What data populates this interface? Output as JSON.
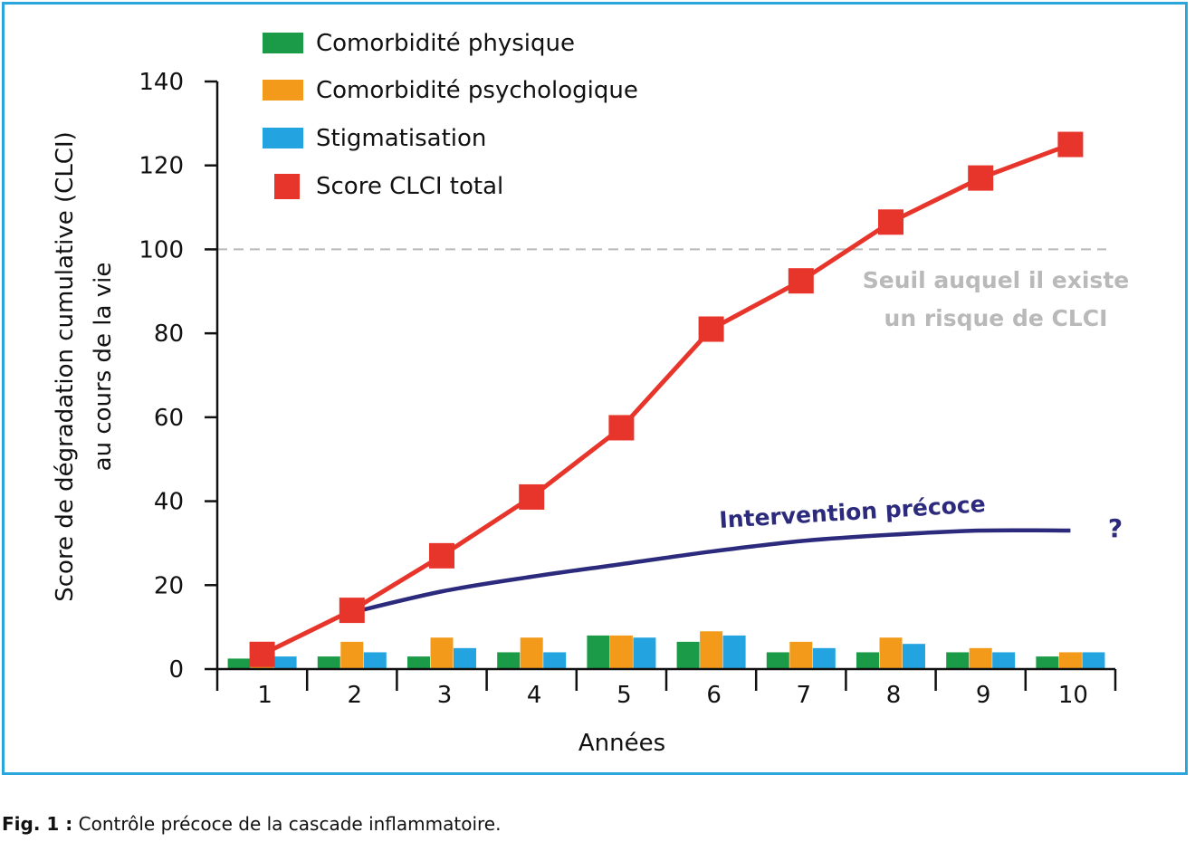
{
  "colors": {
    "frame": "#2aa6dc",
    "physique": "#1b9a47",
    "psychologique": "#f39a1a",
    "stigmatisation": "#23a3e0",
    "total": "#e8352b",
    "intervention": "#2c2a7c",
    "threshold": "#b9b9b9"
  },
  "caption": {
    "label": "Fig. 1 :",
    "text": " Contrôle précoce de la cascade inflammatoire."
  },
  "chart_data": {
    "type": "bar",
    "title": "",
    "xlabel": "Années",
    "ylabel_line1": "Score de dégradation cumulative (CLCI)",
    "ylabel_line2": "au cours de la vie",
    "ylim": [
      0,
      140
    ],
    "yticks": [
      "0",
      "20",
      "40",
      "60",
      "80",
      "100",
      "120",
      "140"
    ],
    "categories": [
      "1",
      "2",
      "3",
      "4",
      "5",
      "6",
      "7",
      "8",
      "9",
      "10"
    ],
    "series": [
      {
        "name": "Comorbidité physique",
        "kind": "bar",
        "color": "#1b9a47",
        "values": [
          2.5,
          3,
          3,
          4,
          8,
          6.5,
          4,
          4,
          4,
          3
        ]
      },
      {
        "name": "Comorbidité psychologique",
        "kind": "bar",
        "color": "#f39a1a",
        "values": [
          3,
          6.5,
          7.5,
          7.5,
          8,
          9,
          6.5,
          7.5,
          5,
          4
        ]
      },
      {
        "name": "Stigmatisation",
        "kind": "bar",
        "color": "#23a3e0",
        "values": [
          3,
          4,
          5,
          4,
          7.5,
          8,
          5,
          6,
          4,
          4
        ]
      },
      {
        "name": "Score CLCI total",
        "kind": "line",
        "color": "#e8352b",
        "values": [
          3.5,
          14,
          27,
          41,
          57.5,
          81,
          92.5,
          106.5,
          117,
          125
        ]
      }
    ],
    "intervention": {
      "label": "Intervention précoce",
      "marker": "?",
      "x": [
        2,
        3,
        4,
        5,
        6,
        7,
        8,
        9,
        10
      ],
      "y": [
        13.5,
        18.5,
        22,
        25,
        28,
        30.5,
        32,
        33,
        33
      ]
    },
    "threshold": {
      "value": 100,
      "label_line1": "Seuil auquel il existe",
      "label_line2": "un risque de CLCI"
    },
    "legend": "top-left"
  }
}
